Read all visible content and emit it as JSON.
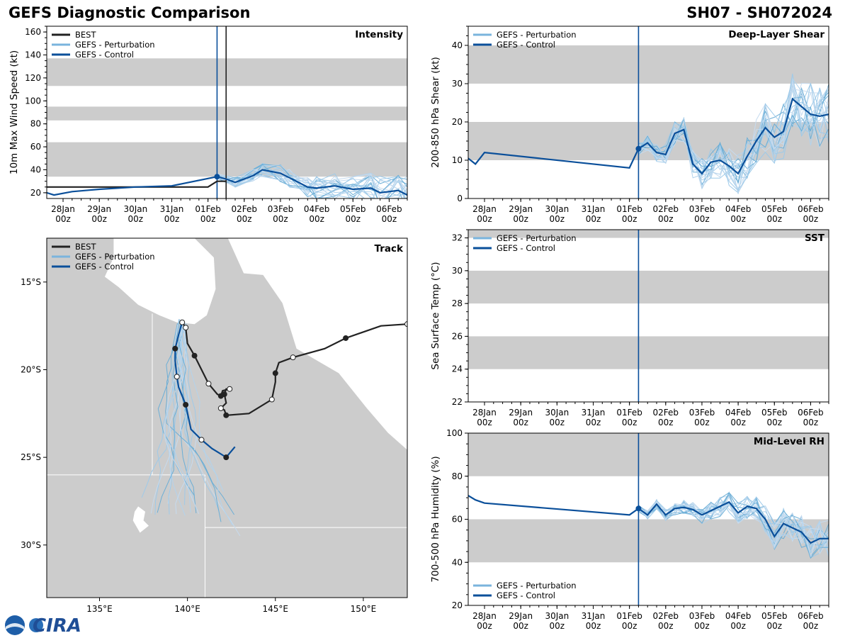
{
  "header": {
    "title_left": "GEFS Diagnostic Comparison",
    "title_right": "SH07 - SH072024"
  },
  "colors": {
    "best": "#222222",
    "perturbation": "#7ab4dd",
    "control": "#0a4f9a",
    "band": "#cccccc",
    "land": "#cccccc"
  },
  "legend": {
    "best": "BEST",
    "perturbation": "GEFS - Perturbation",
    "control": "GEFS - Control"
  },
  "logo": {
    "text": "CIRA"
  },
  "time_ticks": [
    "28Jan\n00z",
    "29Jan\n00z",
    "30Jan\n00z",
    "31Jan\n00z",
    "01Feb\n00z",
    "02Feb\n00z",
    "03Feb\n00z",
    "04Feb\n00z",
    "05Feb\n00z",
    "06Feb\n00z"
  ],
  "chart_data": [
    {
      "id": "intensity",
      "type": "line",
      "title": "Intensity",
      "ylabel": "10m Max Wind Speed (kt)",
      "x_unit": "days since 28Jan 00z",
      "xlim": [
        -0.45,
        9.5
      ],
      "ylim": [
        15,
        165
      ],
      "yticks": [
        20,
        40,
        60,
        80,
        100,
        120,
        140,
        160
      ],
      "bands": [
        [
          34,
          64
        ],
        [
          83,
          95
        ],
        [
          113,
          137
        ]
      ],
      "vlines": [
        {
          "x": 4.25,
          "series": "control"
        },
        {
          "x": 4.5,
          "series": "best"
        }
      ],
      "series": [
        {
          "name": "BEST",
          "x": [
            -0.45,
            4.0,
            4.25,
            4.5
          ],
          "y": [
            25,
            25,
            30,
            30
          ]
        },
        {
          "name": "GEFS - Control",
          "x": [
            -0.45,
            -0.25,
            0.25,
            1.0,
            2.0,
            3.0,
            4.25,
            4.5,
            4.75,
            5.25,
            5.5,
            6.0,
            6.25,
            6.75,
            7.0,
            7.5,
            8.0,
            8.5,
            8.75,
            9.25,
            9.5
          ],
          "y": [
            20,
            18,
            21,
            23,
            25,
            26,
            34,
            32,
            29,
            35,
            40,
            37,
            33,
            25,
            24,
            26,
            23,
            24,
            20,
            22,
            18
          ]
        }
      ]
    },
    {
      "id": "shear",
      "type": "line",
      "title": "Deep-Layer Shear",
      "ylabel": "200-850 hPa Shear (kt)",
      "xlim": [
        -0.45,
        9.5
      ],
      "ylim": [
        0,
        45
      ],
      "yticks": [
        0,
        10,
        20,
        30,
        40
      ],
      "bands": [
        [
          10,
          20
        ],
        [
          30,
          40
        ]
      ],
      "vlines": [
        {
          "x": 4.25,
          "series": "control"
        }
      ],
      "series": [
        {
          "name": "GEFS - Control",
          "x": [
            -0.45,
            -0.25,
            0.0,
            4.0,
            4.25,
            4.5,
            4.75,
            5.0,
            5.25,
            5.5,
            5.75,
            6.0,
            6.25,
            6.5,
            6.75,
            7.0,
            7.25,
            7.5,
            7.75,
            8.0,
            8.25,
            8.5,
            8.75,
            9.0,
            9.25,
            9.5
          ],
          "y": [
            10.5,
            9.0,
            12.0,
            8.0,
            13.0,
            14.5,
            12.0,
            11.5,
            17.0,
            18.0,
            9.0,
            6.5,
            9.5,
            10.0,
            8.5,
            6.5,
            11.0,
            15.0,
            18.5,
            16.0,
            17.5,
            26.0,
            24.0,
            22.0,
            21.5,
            22.0
          ]
        }
      ]
    },
    {
      "id": "track",
      "type": "scatter",
      "title": "Track",
      "xlim": [
        132,
        152.5
      ],
      "ylim": [
        -33,
        -12.5
      ],
      "xticks": [
        "135°E",
        "140°E",
        "145°E",
        "150°E"
      ],
      "yticks": [
        "15°S",
        "20°S",
        "25°S",
        "30°S"
      ],
      "series": [
        {
          "name": "BEST",
          "lon": [
            152.5,
            151.0,
            149.0,
            147.8,
            146.0,
            145.2,
            145.0,
            145.0,
            144.8,
            143.5,
            142.2,
            142.1,
            141.9,
            142.2,
            142.1,
            142.2,
            142.4,
            142.0,
            141.9,
            141.7,
            141.2,
            140.8,
            140.4,
            140.0,
            139.9,
            139.7
          ],
          "lat": [
            -17.4,
            -17.5,
            -18.2,
            -18.8,
            -19.3,
            -19.6,
            -20.2,
            -20.7,
            -21.7,
            -22.5,
            -22.6,
            -22.3,
            -22.2,
            -21.9,
            -21.4,
            -21.1,
            -21.1,
            -21.2,
            -21.5,
            -21.4,
            -20.8,
            -20.0,
            -19.2,
            -18.5,
            -17.6,
            -17.3
          ]
        },
        {
          "name": "GEFS - Control",
          "lon": [
            139.7,
            139.5,
            139.3,
            139.3,
            139.4,
            139.5,
            139.9,
            140.2,
            140.8,
            141.4,
            142.2,
            142.7
          ],
          "lat": [
            -17.3,
            -18.0,
            -18.8,
            -19.5,
            -20.4,
            -21.0,
            -22.0,
            -23.4,
            -24.0,
            -24.5,
            -25.0,
            -24.4
          ]
        }
      ]
    },
    {
      "id": "sst",
      "type": "line",
      "title": "SST",
      "ylabel": "Sea Surface Temp (°C)",
      "xlim": [
        -0.45,
        9.5
      ],
      "ylim": [
        22,
        32.5
      ],
      "yticks": [
        22,
        24,
        26,
        28,
        30,
        32
      ],
      "bands": [
        [
          24,
          26
        ],
        [
          28,
          30
        ],
        [
          32,
          32.5
        ]
      ],
      "vlines": [
        {
          "x": 4.25,
          "series": "control"
        }
      ],
      "series": []
    },
    {
      "id": "rh",
      "type": "line",
      "title": "Mid-Level RH",
      "ylabel": "700-500 hPa Humidity (%)",
      "xlim": [
        -0.45,
        9.5
      ],
      "ylim": [
        20,
        100
      ],
      "yticks": [
        20,
        40,
        60,
        80,
        100
      ],
      "bands": [
        [
          40,
          60
        ],
        [
          80,
          100
        ]
      ],
      "vlines": [
        {
          "x": 4.25,
          "series": "control"
        }
      ],
      "series": [
        {
          "name": "GEFS - Control",
          "x": [
            -0.45,
            -0.25,
            0.0,
            4.0,
            4.25,
            4.5,
            4.75,
            5.0,
            5.25,
            5.5,
            5.75,
            6.0,
            6.25,
            6.5,
            6.75,
            7.0,
            7.25,
            7.5,
            7.75,
            8.0,
            8.25,
            8.5,
            8.75,
            9.0,
            9.25,
            9.5
          ],
          "y": [
            71,
            69,
            67.5,
            62,
            65,
            62,
            67,
            62,
            65,
            65.5,
            64.5,
            62,
            64,
            66,
            68,
            63,
            66,
            65,
            60,
            52,
            58,
            56,
            54,
            49,
            51,
            51
          ]
        }
      ]
    }
  ]
}
